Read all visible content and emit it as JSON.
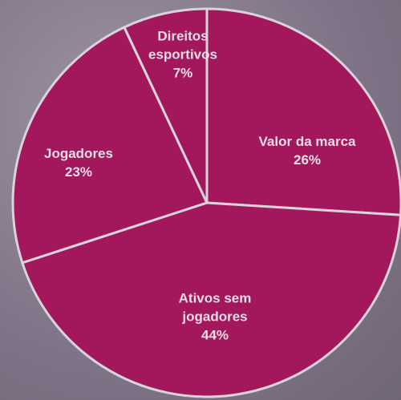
{
  "chart_data": {
    "type": "pie",
    "categories": [
      "Valor da marca",
      "Ativos sem jogadores",
      "Jogadores",
      "Direitos esportivos"
    ],
    "values": [
      26,
      44,
      23,
      7
    ],
    "value_labels": [
      "26%",
      "44%",
      "23%",
      "7%"
    ],
    "color": "#a3185c"
  }
}
